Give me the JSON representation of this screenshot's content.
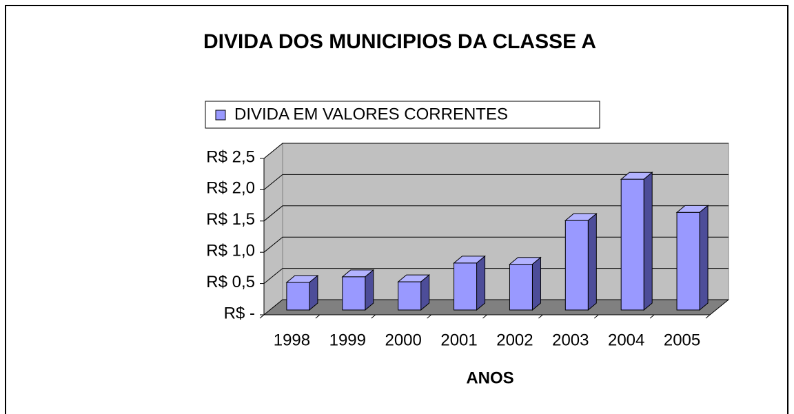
{
  "chart_data": {
    "type": "bar3d",
    "title": "DIVIDA DOS MUNICIPIOS DA CLASSE A",
    "x_label": "ANOS",
    "categories": [
      "1998",
      "1999",
      "2000",
      "2001",
      "2002",
      "2003",
      "2004",
      "2005"
    ],
    "series": [
      {
        "name": "DIVIDA EM VALORES CORRENTES",
        "color": "#9999ff",
        "values": [
          0.44,
          0.53,
          0.45,
          0.75,
          0.73,
          1.43,
          2.09,
          1.56
        ]
      }
    ],
    "ylim": [
      0,
      2.5
    ],
    "yticks": [
      {
        "value": 0,
        "label": "R$ -"
      },
      {
        "value": 0.5,
        "label": "R$ 0,5"
      },
      {
        "value": 1.0,
        "label": "R$ 1,0"
      },
      {
        "value": 1.5,
        "label": "R$ 1,5"
      },
      {
        "value": 2.0,
        "label": "R$ 2,0"
      },
      {
        "value": 2.5,
        "label": "R$ 2,5"
      }
    ],
    "grid": true,
    "legend": "top"
  }
}
